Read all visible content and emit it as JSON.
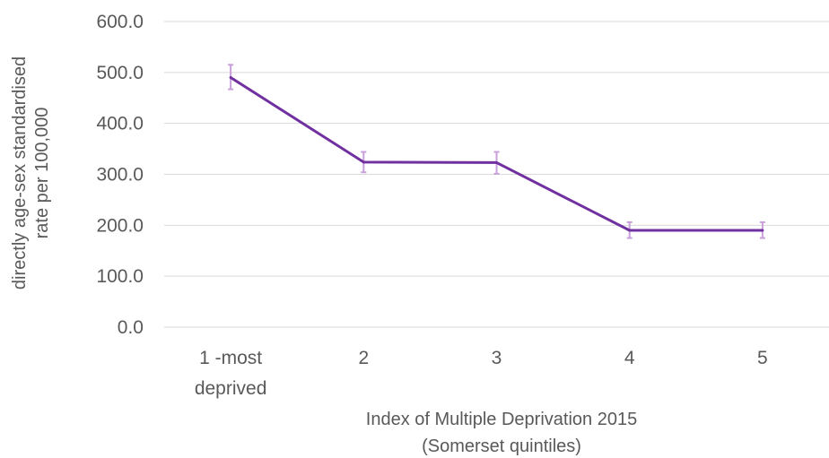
{
  "chart_data": {
    "type": "line",
    "title": "",
    "categories": [
      [
        "1 -most",
        "deprived"
      ],
      [
        "2"
      ],
      [
        "3"
      ],
      [
        "4"
      ],
      [
        "5"
      ]
    ],
    "series": [
      {
        "values": [
          490,
          324,
          323,
          190,
          190
        ],
        "error_low": [
          467,
          304,
          301,
          175,
          175
        ],
        "error_high": [
          515,
          344,
          344,
          206,
          206
        ]
      }
    ],
    "yticks": [
      "0.0",
      "100.0",
      "200.0",
      "300.0",
      "400.0",
      "500.0",
      "600.0"
    ],
    "ylim": [
      0,
      600
    ],
    "ylabel": [
      "directly age-sex standardised",
      "rate per 100,000"
    ],
    "xlabel": [
      "Index of Multiple Deprivation 2015",
      "(Somerset quintiles)"
    ],
    "grid": true,
    "colors": {
      "line": "#7030a0",
      "error_bar": "#c9a0dc",
      "grid": "#d9d9d9",
      "text": "#595959"
    }
  }
}
